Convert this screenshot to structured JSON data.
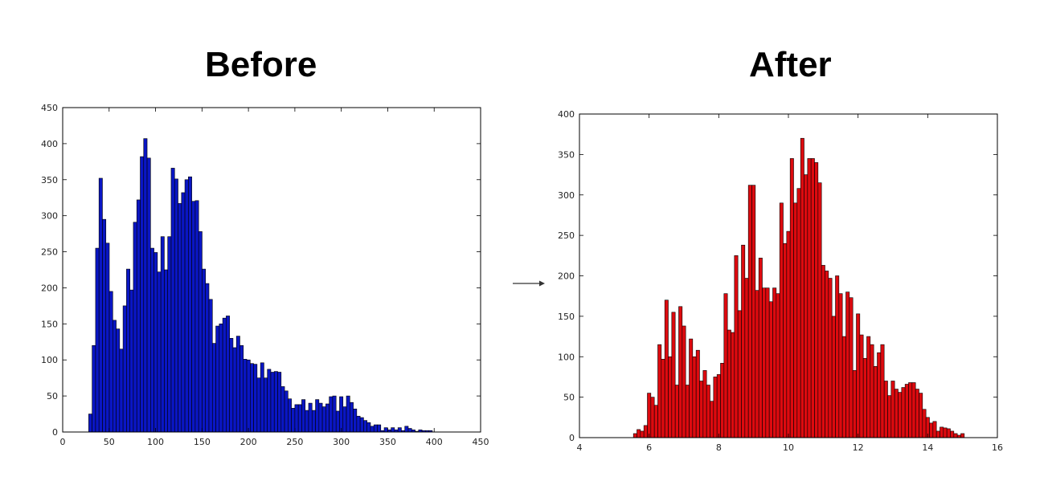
{
  "before_title": "Before",
  "after_title": "After",
  "chart_data": [
    {
      "type": "bar",
      "title": "Before",
      "color": "#0a16c4",
      "xlim": [
        0,
        450
      ],
      "ylim": [
        0,
        450
      ],
      "xticks": [
        0,
        50,
        100,
        150,
        200,
        250,
        300,
        350,
        400,
        450
      ],
      "yticks": [
        0,
        50,
        100,
        150,
        200,
        250,
        300,
        350,
        400,
        450
      ],
      "bin_start": 28,
      "bin_width": 3.7,
      "values": [
        25,
        120,
        255,
        352,
        295,
        262,
        195,
        155,
        143,
        115,
        175,
        226,
        197,
        291,
        322,
        382,
        407,
        380,
        255,
        249,
        222,
        271,
        225,
        271,
        366,
        351,
        317,
        332,
        350,
        354,
        320,
        321,
        278,
        226,
        206,
        184,
        123,
        147,
        150,
        158,
        161,
        130,
        117,
        133,
        120,
        101,
        100,
        95,
        94,
        75,
        96,
        75,
        87,
        83,
        84,
        83,
        63,
        57,
        46,
        33,
        38,
        38,
        45,
        30,
        40,
        30,
        45,
        40,
        35,
        39,
        49,
        50,
        29,
        49,
        35,
        50,
        41,
        32,
        22,
        20,
        16,
        13,
        8,
        10,
        10,
        2,
        6,
        3,
        6,
        3,
        6,
        2,
        8,
        5,
        3,
        1,
        3,
        2,
        2,
        2
      ]
    },
    {
      "type": "bar",
      "title": "After",
      "color": "#dd0a0f",
      "xlim": [
        4,
        16
      ],
      "ylim": [
        0,
        400
      ],
      "xticks": [
        4,
        6,
        8,
        10,
        12,
        14,
        16
      ],
      "yticks": [
        0,
        50,
        100,
        150,
        200,
        250,
        300,
        350,
        400
      ],
      "bin_start": 5.55,
      "bin_width": 0.1,
      "values": [
        5,
        10,
        8,
        15,
        55,
        50,
        40,
        115,
        97,
        170,
        100,
        155,
        65,
        162,
        138,
        65,
        122,
        100,
        108,
        70,
        83,
        65,
        45,
        75,
        78,
        92,
        178,
        133,
        130,
        225,
        157,
        238,
        197,
        312,
        312,
        182,
        222,
        185,
        185,
        168,
        185,
        178,
        290,
        240,
        255,
        345,
        290,
        308,
        370,
        325,
        345,
        345,
        340,
        315,
        213,
        206,
        197,
        150,
        200,
        178,
        125,
        180,
        173,
        83,
        153,
        127,
        98,
        125,
        115,
        88,
        105,
        115,
        70,
        52,
        70,
        60,
        56,
        62,
        66,
        68,
        68,
        60,
        55,
        35,
        25,
        18,
        20,
        8,
        13,
        12,
        11,
        8,
        5,
        3,
        5
      ]
    }
  ]
}
